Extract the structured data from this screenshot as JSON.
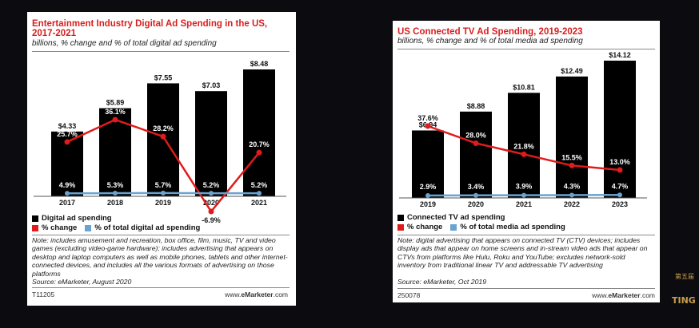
{
  "colors": {
    "bar": "#000000",
    "pct_change": "#e01b1b",
    "pct_total": "#6aa3cf",
    "title": "#d81e1e",
    "background": "#0b0b10"
  },
  "chart_data": [
    {
      "type": "bar",
      "title": "Entertainment Industry Digital Ad Spending in the US, 2017-2021",
      "subtitle": "billions, % change and % of total digital ad spending",
      "categories": [
        "2017",
        "2018",
        "2019",
        "2020",
        "2021"
      ],
      "series": [
        {
          "name": "Digital ad spending",
          "type": "bar",
          "values": [
            4.33,
            5.89,
            7.55,
            7.03,
            8.48
          ],
          "labels": [
            "$4.33",
            "$5.89",
            "$7.55",
            "$7.03",
            "$8.48"
          ]
        },
        {
          "name": "% change",
          "type": "line",
          "values": [
            25.7,
            36.1,
            28.2,
            -6.9,
            20.7
          ],
          "labels": [
            "25.7%",
            "36.1%",
            "28.2%",
            "-6.9%",
            "20.7%"
          ]
        },
        {
          "name": "% of total digital ad spending",
          "type": "line",
          "values": [
            4.9,
            5.3,
            5.7,
            5.2,
            5.2
          ],
          "labels": [
            "4.9%",
            "5.3%",
            "5.7%",
            "5.2%",
            "5.2%"
          ]
        }
      ],
      "note": "Note: includes amusement and recreation, box office, film, music, TV and video games (excluding video-game hardware); includes advertising that appears on desktop and laptop computers as well as mobile phones, tablets and other internet-connected devices, and includes all the various formats of advertising on those platforms",
      "source": "Source: eMarketer, August 2020",
      "id": "T11205",
      "brand_prefix": "www.",
      "brand_bold": "eMarketer",
      "brand_suffix": ".com"
    },
    {
      "type": "bar",
      "title": "US Connected TV Ad Spending, 2019-2023",
      "subtitle": "billions, % change and % of total media ad spending",
      "categories": [
        "2019",
        "2020",
        "2021",
        "2022",
        "2023"
      ],
      "series": [
        {
          "name": "Connected TV ad spending",
          "type": "bar",
          "values": [
            6.94,
            8.88,
            10.81,
            12.49,
            14.12
          ],
          "labels": [
            "$6.94",
            "$8.88",
            "$10.81",
            "$12.49",
            "$14.12"
          ]
        },
        {
          "name": "% change",
          "type": "line",
          "values": [
            37.6,
            28.0,
            21.8,
            15.5,
            13.0
          ],
          "labels": [
            "37.6%",
            "28.0%",
            "21.8%",
            "15.5%",
            "13.0%"
          ]
        },
        {
          "name": "% of total media ad spending",
          "type": "line",
          "values": [
            2.9,
            3.4,
            3.9,
            4.3,
            4.7
          ],
          "labels": [
            "2.9%",
            "3.4%",
            "3.9%",
            "4.3%",
            "4.7%"
          ]
        }
      ],
      "note": "Note: digital advertising that appears on connected TV (CTV) devices; includes display ads that appear on home screens and in-stream video ads that appear on CTVs from platforms like Hulu, Roku and YouTube; excludes network-sold inventory from traditional linear TV and addressable TV advertising",
      "source": "Source: eMarketer, Oct 2019",
      "id": "250078",
      "brand_prefix": "www.",
      "brand_bold": "eMarketer",
      "brand_suffix": ".com"
    }
  ],
  "side_text": {
    "top": "第五届",
    "bottom": "TING"
  }
}
